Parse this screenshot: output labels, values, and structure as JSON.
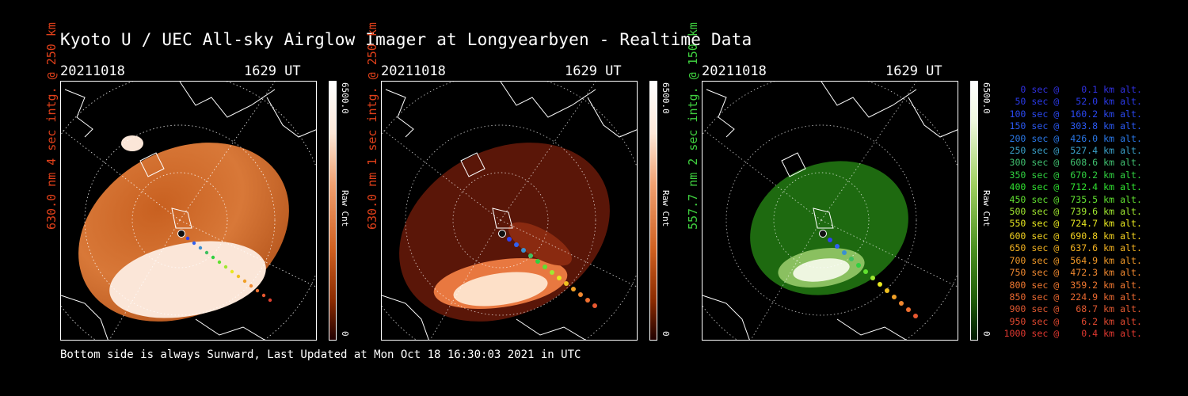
{
  "title": "Kyoto U / UEC All-sky Airglow Imager at Longyearbyen - Realtime Data",
  "footer": "Bottom side is always Sunward, Last Updated at Mon Oct 18 16:30:03 2021 in UTC",
  "panels": [
    {
      "date": "20211018",
      "time": "1629 UT",
      "side_label": "630.0 nm 4 sec intg. @ 250 km",
      "side_color": "#e0401a",
      "cbar_max": "6500.0",
      "cbar_label": "Raw Cnt",
      "cbar_min": "0",
      "theme": "red-bright"
    },
    {
      "date": "20211018",
      "time": "1629 UT",
      "side_label": "630.0 nm 1 sec intg. @ 250 km",
      "side_color": "#e0401a",
      "cbar_max": "6500.0",
      "cbar_label": "Raw Cnt",
      "cbar_min": "0",
      "theme": "red-dark"
    },
    {
      "date": "20211018",
      "time": "1629 UT",
      "side_label": "557.7 nm 2 sec intg. @ 150 km",
      "side_color": "#3fd03f",
      "cbar_max": "6500.0",
      "cbar_label": "Raw Cnt",
      "cbar_min": "0",
      "theme": "green"
    }
  ],
  "legend": [
    {
      "text": "   0 sec @    0.1 km alt.",
      "color": "#3030e0"
    },
    {
      "text": "  50 sec @   52.0 km alt.",
      "color": "#2a3ae8"
    },
    {
      "text": " 100 sec @  160.2 km alt.",
      "color": "#2a48f0"
    },
    {
      "text": " 150 sec @  303.8 km alt.",
      "color": "#2a58f0"
    },
    {
      "text": " 200 sec @  426.0 km alt.",
      "color": "#2a78e8"
    },
    {
      "text": " 250 sec @  527.4 km alt.",
      "color": "#3aa0c8"
    },
    {
      "text": " 300 sec @  608.6 km alt.",
      "color": "#40c070"
    },
    {
      "text": " 350 sec @  670.2 km alt.",
      "color": "#30d040"
    },
    {
      "text": " 400 sec @  712.4 km alt.",
      "color": "#30e030"
    },
    {
      "text": " 450 sec @  735.5 km alt.",
      "color": "#60e030"
    },
    {
      "text": " 500 sec @  739.6 km alt.",
      "color": "#a0e830"
    },
    {
      "text": " 550 sec @  724.7 km alt.",
      "color": "#e8e820"
    },
    {
      "text": " 600 sec @  690.8 km alt.",
      "color": "#f0d020"
    },
    {
      "text": " 650 sec @  637.6 km alt.",
      "color": "#f0b020"
    },
    {
      "text": " 700 sec @  564.9 km alt.",
      "color": "#f09828"
    },
    {
      "text": " 750 sec @  472.3 km alt.",
      "color": "#f08830"
    },
    {
      "text": " 800 sec @  359.2 km alt.",
      "color": "#f07830"
    },
    {
      "text": " 850 sec @  224.9 km alt.",
      "color": "#e86830"
    },
    {
      "text": " 900 sec @   68.7 km alt.",
      "color": "#e05830"
    },
    {
      "text": " 950 sec @    6.2 km alt.",
      "color": "#e04830"
    },
    {
      "text": "1000 sec @    0.4 km alt.",
      "color": "#e03830"
    }
  ]
}
